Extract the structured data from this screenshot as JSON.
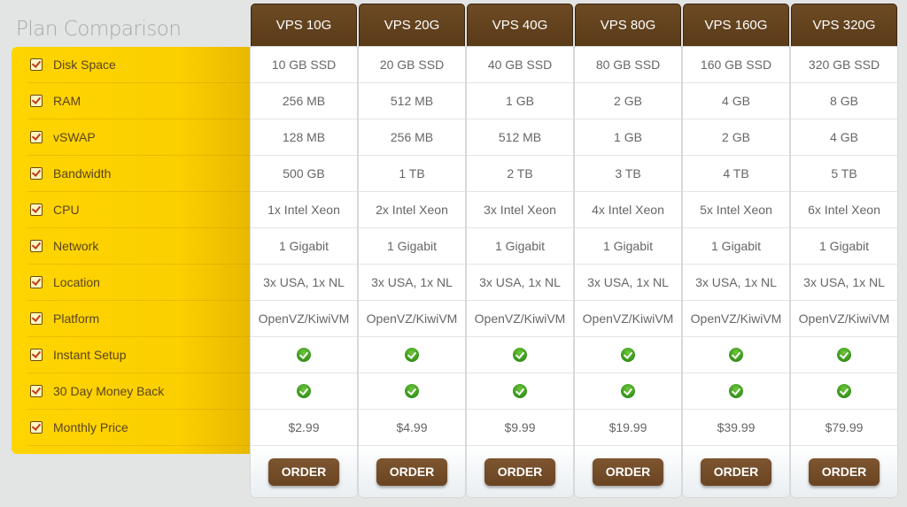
{
  "title": "Plan Comparison",
  "features": [
    "Disk Space",
    "RAM",
    "vSWAP",
    "Bandwidth",
    "CPU",
    "Network",
    "Location",
    "Platform",
    "Instant Setup",
    "30 Day Money Back",
    "Monthly Price"
  ],
  "order_label": "ORDER",
  "colors": {
    "header": "#6c4a24",
    "feature_panel": "#ffd500",
    "check": "#3a9a1e"
  },
  "plans": [
    {
      "name": "VPS 10G",
      "values": [
        "10 GB SSD",
        "256 MB",
        "128 MB",
        "500 GB",
        "1x Intel Xeon",
        "1 Gigabit",
        "3x USA, 1x NL",
        "OpenVZ/KiwiVM",
        "check-icon",
        "check-icon",
        "$2.99"
      ]
    },
    {
      "name": "VPS 20G",
      "values": [
        "20 GB SSD",
        "512 MB",
        "256 MB",
        "1 TB",
        "2x Intel Xeon",
        "1 Gigabit",
        "3x USA, 1x NL",
        "OpenVZ/KiwiVM",
        "check-icon",
        "check-icon",
        "$4.99"
      ]
    },
    {
      "name": "VPS 40G",
      "values": [
        "40 GB SSD",
        "1 GB",
        "512 MB",
        "2 TB",
        "3x Intel Xeon",
        "1 Gigabit",
        "3x USA, 1x NL",
        "OpenVZ/KiwiVM",
        "check-icon",
        "check-icon",
        "$9.99"
      ]
    },
    {
      "name": "VPS 80G",
      "values": [
        "80 GB SSD",
        "2 GB",
        "1 GB",
        "3 TB",
        "4x Intel Xeon",
        "1 Gigabit",
        "3x USA, 1x NL",
        "OpenVZ/KiwiVM",
        "check-icon",
        "check-icon",
        "$19.99"
      ]
    },
    {
      "name": "VPS 160G",
      "values": [
        "160 GB SSD",
        "4 GB",
        "2 GB",
        "4 TB",
        "5x Intel Xeon",
        "1 Gigabit",
        "3x USA, 1x NL",
        "OpenVZ/KiwiVM",
        "check-icon",
        "check-icon",
        "$39.99"
      ]
    },
    {
      "name": "VPS 320G",
      "values": [
        "320 GB SSD",
        "8 GB",
        "4 GB",
        "5 TB",
        "6x Intel Xeon",
        "1 Gigabit",
        "3x USA, 1x NL",
        "OpenVZ/KiwiVM",
        "check-icon",
        "check-icon",
        "$79.99"
      ]
    }
  ]
}
